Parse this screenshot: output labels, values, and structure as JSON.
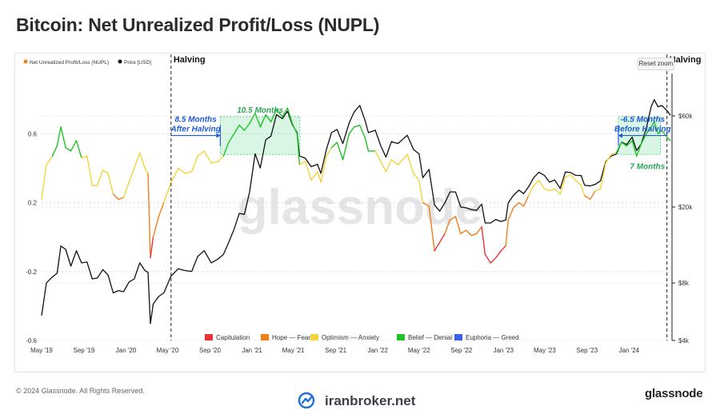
{
  "title": "Bitcoin: Net Unrealized Profit/Loss (NUPL)",
  "reset_zoom_label": "Reset zoom",
  "copyright": "© 2024 Glassnode. All Rights Reserved.",
  "brand": "glassnode",
  "watermark": "glassnode",
  "footer_logo_text": "iranbroker.net",
  "colors": {
    "capitulation": "#e8343a",
    "hope_fear": "#f07f1b",
    "optimism_anxiety": "#f5d33c",
    "belief_denial": "#22c22a",
    "euphoria_greed": "#3861e6",
    "price": "#111111",
    "annotation_blue": "#1f5ad6",
    "annotation_green": "#2aa655"
  },
  "chart_data": {
    "type": "line",
    "legend_top": [
      {
        "name": "Net Unrealized Profit/Loss (NUPL)",
        "color": "#f07f1b"
      },
      {
        "name": "Price [USD]",
        "color": "#111111"
      }
    ],
    "legend_bottom": [
      {
        "name": "Capitulation",
        "color": "#e8343a"
      },
      {
        "name": "Hope — Fear",
        "color": "#f07f1b"
      },
      {
        "name": "Optimism — Anxiety",
        "color": "#f5d33c"
      },
      {
        "name": "Belief — Denial",
        "color": "#22c22a"
      },
      {
        "name": "Euphoria — Greed",
        "color": "#3861e6"
      }
    ],
    "x_ticks": [
      "May '19",
      "Sep '19",
      "Jan '20",
      "May '20",
      "Sep '20",
      "Jan '21",
      "May '21",
      "Sep '21",
      "Jan '22",
      "May '22",
      "Sep '22",
      "Jan '23",
      "May '23",
      "Sep '23",
      "Jan '24"
    ],
    "x_range": [
      "2019-05-01",
      "2024-04-30"
    ],
    "y_left_ticks": [
      "-0.6",
      "-0.2",
      "0.2",
      "0.6"
    ],
    "y_left_range": [
      -0.6,
      0.95
    ],
    "y_right_ticks": [
      "$4k",
      "$8k",
      "$20k",
      "$60k"
    ],
    "y_right_range": [
      4000,
      100000
    ],
    "y_right_scale": "log",
    "nupl": [
      [
        "2019-05-01",
        0.22
      ],
      [
        "2019-05-15",
        0.42
      ],
      [
        "2019-06-01",
        0.47
      ],
      [
        "2019-06-15",
        0.53
      ],
      [
        "2019-06-26",
        0.64
      ],
      [
        "2019-07-10",
        0.52
      ],
      [
        "2019-07-25",
        0.5
      ],
      [
        "2019-08-10",
        0.56
      ],
      [
        "2019-08-25",
        0.46
      ],
      [
        "2019-09-10",
        0.47
      ],
      [
        "2019-09-25",
        0.3
      ],
      [
        "2019-10-10",
        0.3
      ],
      [
        "2019-10-26",
        0.39
      ],
      [
        "2019-11-10",
        0.37
      ],
      [
        "2019-11-25",
        0.25
      ],
      [
        "2019-12-10",
        0.22
      ],
      [
        "2019-12-25",
        0.23
      ],
      [
        "2020-01-10",
        0.32
      ],
      [
        "2020-01-25",
        0.4
      ],
      [
        "2020-02-10",
        0.49
      ],
      [
        "2020-02-25",
        0.4
      ],
      [
        "2020-03-05",
        0.37
      ],
      [
        "2020-03-12",
        -0.12
      ],
      [
        "2020-03-20",
        0.0
      ],
      [
        "2020-04-05",
        0.12
      ],
      [
        "2020-04-20",
        0.2
      ],
      [
        "2020-05-11",
        0.32
      ],
      [
        "2020-06-01",
        0.4
      ],
      [
        "2020-06-20",
        0.37
      ],
      [
        "2020-07-10",
        0.38
      ],
      [
        "2020-07-27",
        0.47
      ],
      [
        "2020-08-15",
        0.5
      ],
      [
        "2020-09-05",
        0.43
      ],
      [
        "2020-09-25",
        0.44
      ],
      [
        "2020-10-10",
        0.47
      ],
      [
        "2020-10-25",
        0.55
      ],
      [
        "2020-11-10",
        0.6
      ],
      [
        "2020-11-25",
        0.65
      ],
      [
        "2020-12-10",
        0.62
      ],
      [
        "2020-12-25",
        0.66
      ],
      [
        "2021-01-10",
        0.72
      ],
      [
        "2021-01-25",
        0.64
      ],
      [
        "2021-02-10",
        0.71
      ],
      [
        "2021-02-25",
        0.67
      ],
      [
        "2021-03-13",
        0.74
      ],
      [
        "2021-03-30",
        0.7
      ],
      [
        "2021-04-14",
        0.75
      ],
      [
        "2021-04-28",
        0.66
      ],
      [
        "2021-05-12",
        0.6
      ],
      [
        "2021-05-19",
        0.42
      ],
      [
        "2021-06-05",
        0.44
      ],
      [
        "2021-06-22",
        0.33
      ],
      [
        "2021-07-10",
        0.38
      ],
      [
        "2021-07-20",
        0.32
      ],
      [
        "2021-08-05",
        0.47
      ],
      [
        "2021-08-20",
        0.52
      ],
      [
        "2021-09-05",
        0.55
      ],
      [
        "2021-09-22",
        0.45
      ],
      [
        "2021-10-10",
        0.6
      ],
      [
        "2021-10-25",
        0.64
      ],
      [
        "2021-11-10",
        0.65
      ],
      [
        "2021-11-25",
        0.58
      ],
      [
        "2021-12-05",
        0.5
      ],
      [
        "2021-12-25",
        0.5
      ],
      [
        "2022-01-10",
        0.44
      ],
      [
        "2022-01-25",
        0.38
      ],
      [
        "2022-02-10",
        0.45
      ],
      [
        "2022-03-01",
        0.42
      ],
      [
        "2022-03-28",
        0.48
      ],
      [
        "2022-04-15",
        0.37
      ],
      [
        "2022-05-01",
        0.33
      ],
      [
        "2022-05-12",
        0.2
      ],
      [
        "2022-05-30",
        0.18
      ],
      [
        "2022-06-15",
        -0.08
      ],
      [
        "2022-06-30",
        -0.03
      ],
      [
        "2022-07-15",
        0.02
      ],
      [
        "2022-07-30",
        0.1
      ],
      [
        "2022-08-15",
        0.12
      ],
      [
        "2022-08-30",
        0.02
      ],
      [
        "2022-09-15",
        0.04
      ],
      [
        "2022-09-30",
        0.01
      ],
      [
        "2022-10-15",
        0.02
      ],
      [
        "2022-10-30",
        0.06
      ],
      [
        "2022-11-09",
        -0.1
      ],
      [
        "2022-11-25",
        -0.15
      ],
      [
        "2022-12-10",
        -0.12
      ],
      [
        "2022-12-25",
        -0.08
      ],
      [
        "2023-01-08",
        -0.05
      ],
      [
        "2023-01-15",
        0.1
      ],
      [
        "2023-01-30",
        0.17
      ],
      [
        "2023-02-15",
        0.2
      ],
      [
        "2023-03-01",
        0.18
      ],
      [
        "2023-03-15",
        0.24
      ],
      [
        "2023-03-30",
        0.3
      ],
      [
        "2023-04-14",
        0.33
      ],
      [
        "2023-04-30",
        0.28
      ],
      [
        "2023-05-15",
        0.27
      ],
      [
        "2023-05-30",
        0.28
      ],
      [
        "2023-06-15",
        0.25
      ],
      [
        "2023-06-30",
        0.35
      ],
      [
        "2023-07-15",
        0.36
      ],
      [
        "2023-07-30",
        0.33
      ],
      [
        "2023-08-15",
        0.3
      ],
      [
        "2023-08-25",
        0.24
      ],
      [
        "2023-09-10",
        0.22
      ],
      [
        "2023-09-25",
        0.27
      ],
      [
        "2023-10-10",
        0.28
      ],
      [
        "2023-10-25",
        0.43
      ],
      [
        "2023-11-10",
        0.48
      ],
      [
        "2023-11-25",
        0.49
      ],
      [
        "2023-12-10",
        0.55
      ],
      [
        "2023-12-25",
        0.53
      ],
      [
        "2024-01-10",
        0.56
      ],
      [
        "2024-01-23",
        0.47
      ],
      [
        "2024-02-05",
        0.54
      ],
      [
        "2024-02-20",
        0.6
      ],
      [
        "2024-03-05",
        0.64
      ],
      [
        "2024-03-14",
        0.67
      ],
      [
        "2024-03-25",
        0.6
      ],
      [
        "2024-04-05",
        0.62
      ],
      [
        "2024-04-20",
        0.58
      ],
      [
        "2024-04-30",
        0.56
      ]
    ],
    "price": [
      [
        "2019-05-01",
        5400
      ],
      [
        "2019-05-15",
        8000
      ],
      [
        "2019-06-01",
        8600
      ],
      [
        "2019-06-15",
        9000
      ],
      [
        "2019-06-26",
        12500
      ],
      [
        "2019-07-10",
        12000
      ],
      [
        "2019-07-25",
        9800
      ],
      [
        "2019-08-10",
        11800
      ],
      [
        "2019-08-25",
        10200
      ],
      [
        "2019-09-10",
        10300
      ],
      [
        "2019-09-25",
        8400
      ],
      [
        "2019-10-10",
        8500
      ],
      [
        "2019-10-26",
        9400
      ],
      [
        "2019-11-10",
        8800
      ],
      [
        "2019-11-25",
        7100
      ],
      [
        "2019-12-10",
        7300
      ],
      [
        "2019-12-25",
        7200
      ],
      [
        "2020-01-10",
        8100
      ],
      [
        "2020-01-25",
        8400
      ],
      [
        "2020-02-10",
        10200
      ],
      [
        "2020-02-25",
        9300
      ],
      [
        "2020-03-05",
        9100
      ],
      [
        "2020-03-12",
        4900
      ],
      [
        "2020-03-20",
        6200
      ],
      [
        "2020-04-05",
        6800
      ],
      [
        "2020-04-20",
        7100
      ],
      [
        "2020-05-11",
        8700
      ],
      [
        "2020-06-01",
        9500
      ],
      [
        "2020-06-20",
        9300
      ],
      [
        "2020-07-10",
        9200
      ],
      [
        "2020-07-27",
        11000
      ],
      [
        "2020-08-15",
        11800
      ],
      [
        "2020-09-05",
        10200
      ],
      [
        "2020-09-25",
        10700
      ],
      [
        "2020-10-10",
        11300
      ],
      [
        "2020-10-25",
        13000
      ],
      [
        "2020-11-10",
        15300
      ],
      [
        "2020-11-25",
        18500
      ],
      [
        "2020-12-10",
        18300
      ],
      [
        "2020-12-25",
        24000
      ],
      [
        "2021-01-10",
        38000
      ],
      [
        "2021-01-25",
        32000
      ],
      [
        "2021-02-10",
        45000
      ],
      [
        "2021-02-25",
        47000
      ],
      [
        "2021-03-13",
        61000
      ],
      [
        "2021-03-30",
        58000
      ],
      [
        "2021-04-14",
        63500
      ],
      [
        "2021-04-28",
        54000
      ],
      [
        "2021-05-12",
        49000
      ],
      [
        "2021-05-19",
        37000
      ],
      [
        "2021-06-05",
        36000
      ],
      [
        "2021-06-22",
        32500
      ],
      [
        "2021-07-10",
        33500
      ],
      [
        "2021-07-20",
        30000
      ],
      [
        "2021-08-05",
        40000
      ],
      [
        "2021-08-20",
        49000
      ],
      [
        "2021-09-05",
        51000
      ],
      [
        "2021-09-22",
        43000
      ],
      [
        "2021-10-10",
        55000
      ],
      [
        "2021-10-25",
        63000
      ],
      [
        "2021-11-10",
        68000
      ],
      [
        "2021-11-25",
        57000
      ],
      [
        "2021-12-05",
        49000
      ],
      [
        "2021-12-25",
        50500
      ],
      [
        "2022-01-10",
        41800
      ],
      [
        "2022-01-25",
        36500
      ],
      [
        "2022-02-10",
        44000
      ],
      [
        "2022-03-01",
        43000
      ],
      [
        "2022-03-28",
        47500
      ],
      [
        "2022-04-15",
        40000
      ],
      [
        "2022-05-01",
        38000
      ],
      [
        "2022-05-12",
        28500
      ],
      [
        "2022-05-30",
        31500
      ],
      [
        "2022-06-15",
        20500
      ],
      [
        "2022-06-30",
        19000
      ],
      [
        "2022-07-15",
        21000
      ],
      [
        "2022-07-30",
        24000
      ],
      [
        "2022-08-15",
        24000
      ],
      [
        "2022-08-30",
        20000
      ],
      [
        "2022-09-15",
        19800
      ],
      [
        "2022-09-30",
        19400
      ],
      [
        "2022-10-15",
        19200
      ],
      [
        "2022-10-30",
        20700
      ],
      [
        "2022-11-09",
        16500
      ],
      [
        "2022-11-25",
        16500
      ],
      [
        "2022-12-10",
        17200
      ],
      [
        "2022-12-25",
        16800
      ],
      [
        "2023-01-08",
        17100
      ],
      [
        "2023-01-15",
        21000
      ],
      [
        "2023-01-30",
        23000
      ],
      [
        "2023-02-15",
        24500
      ],
      [
        "2023-03-01",
        23500
      ],
      [
        "2023-03-15",
        25500
      ],
      [
        "2023-03-30",
        28500
      ],
      [
        "2023-04-14",
        30400
      ],
      [
        "2023-04-30",
        29300
      ],
      [
        "2023-05-15",
        27000
      ],
      [
        "2023-05-30",
        27700
      ],
      [
        "2023-06-15",
        25000
      ],
      [
        "2023-06-30",
        30500
      ],
      [
        "2023-07-15",
        30300
      ],
      [
        "2023-07-30",
        29300
      ],
      [
        "2023-08-15",
        29200
      ],
      [
        "2023-08-25",
        26000
      ],
      [
        "2023-09-10",
        25800
      ],
      [
        "2023-09-25",
        26300
      ],
      [
        "2023-10-10",
        27400
      ],
      [
        "2023-10-25",
        34500
      ],
      [
        "2023-11-10",
        37000
      ],
      [
        "2023-11-25",
        37800
      ],
      [
        "2023-12-10",
        43800
      ],
      [
        "2023-12-25",
        42500
      ],
      [
        "2024-01-10",
        46500
      ],
      [
        "2024-01-23",
        39500
      ],
      [
        "2024-02-05",
        42700
      ],
      [
        "2024-02-20",
        51800
      ],
      [
        "2024-03-05",
        67000
      ],
      [
        "2024-03-14",
        73000
      ],
      [
        "2024-03-25",
        67000
      ],
      [
        "2024-04-05",
        68000
      ],
      [
        "2024-04-20",
        64000
      ],
      [
        "2024-04-30",
        60500
      ]
    ],
    "halvings": [
      {
        "date": "2020-05-11",
        "label": "Halving"
      },
      {
        "date": "2024-04-20",
        "label": "Halving"
      }
    ],
    "highlight_zones": [
      {
        "start": "2020-10-01",
        "end": "2021-05-20",
        "y_range": [
          0.48,
          0.7
        ],
        "label": "10.5 Months"
      },
      {
        "start": "2023-12-01",
        "end": "2024-04-01",
        "y_range": [
          0.48,
          0.7
        ],
        "label": "7 Months"
      }
    ],
    "annotations": [
      {
        "line1": "8.5 Months",
        "line2": "After Halving",
        "from": "2020-05-11",
        "to": "2020-10-01"
      },
      {
        "line1": "-6.5 Months",
        "line2": "Before Halving",
        "from": "2024-04-20",
        "to": "2023-12-01"
      }
    ]
  }
}
